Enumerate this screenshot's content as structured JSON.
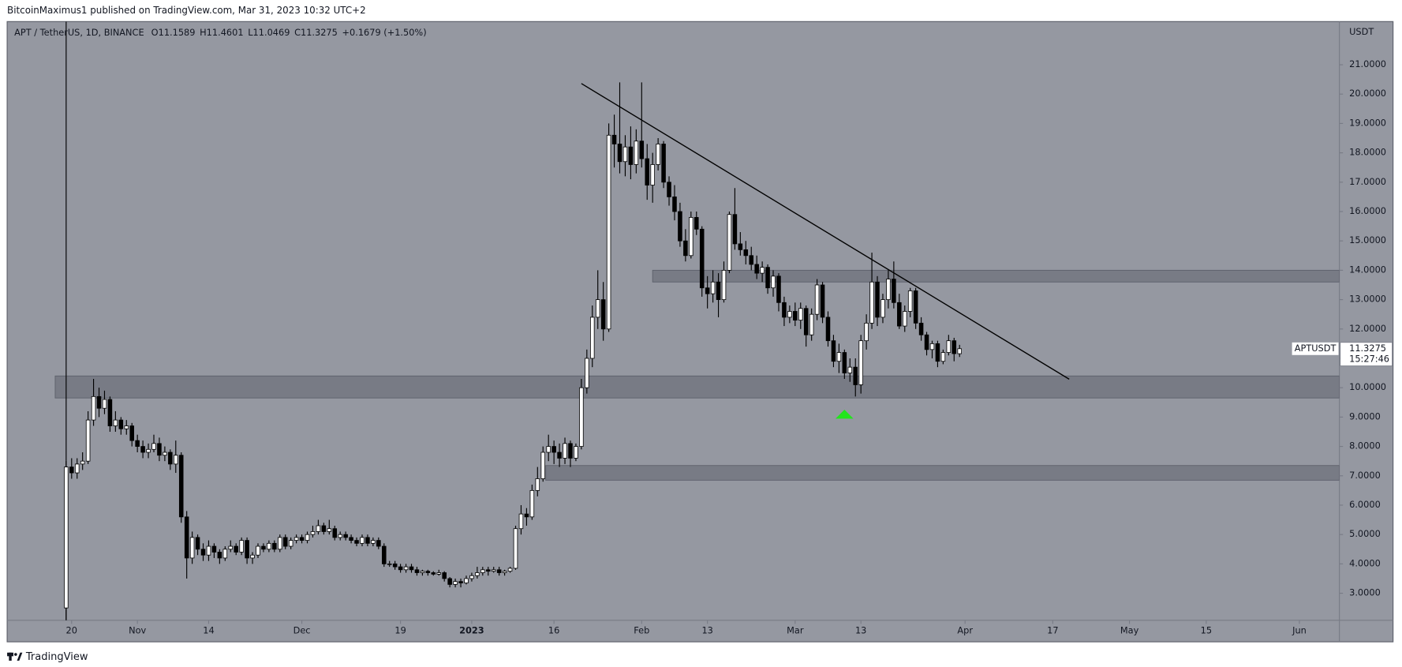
{
  "chart_data": {
    "type": "candlestick",
    "published": "BitcoinMaximus1 published on TradingView.com, Mar 31, 2023 10:32 UTC+2",
    "symbol": "APT / TetherUS, 1D, BINANCE",
    "ohlc_labels": [
      "O",
      "H",
      "L",
      "C"
    ],
    "change": "+0.1679 (+1.50%)",
    "y_axis_title": "USDT",
    "ticker_tag": "APTUSDT",
    "countdown": "15:27:46",
    "brand": "TradingView",
    "up_color": "#ffffff",
    "down_color": "#000000",
    "background": "#9598a1",
    "zone_color": "#6f727c",
    "xlim": [
      -10.6,
      232.3
    ],
    "ylim": [
      2.08,
      22.47
    ],
    "xticks": [
      {
        "value": 1,
        "label": "20"
      },
      {
        "value": 13,
        "label": "Nov"
      },
      {
        "value": 26,
        "label": "14"
      },
      {
        "value": 43,
        "label": "Dec"
      },
      {
        "value": 61,
        "label": "19"
      },
      {
        "value": 74,
        "label": "2023"
      },
      {
        "value": 89,
        "label": "16"
      },
      {
        "value": 105,
        "label": "Feb"
      },
      {
        "value": 117,
        "label": "13"
      },
      {
        "value": 133,
        "label": "Mar"
      },
      {
        "value": 145,
        "label": "13"
      },
      {
        "value": 164,
        "label": "Apr"
      },
      {
        "value": 180,
        "label": "17"
      },
      {
        "value": 194,
        "label": "May"
      },
      {
        "value": 208,
        "label": "15"
      },
      {
        "value": 225,
        "label": "Jun"
      }
    ],
    "yticks": [
      {
        "value": 3,
        "label": "3.0000"
      },
      {
        "value": 4,
        "label": "4.0000"
      },
      {
        "value": 5,
        "label": "5.0000"
      },
      {
        "value": 6,
        "label": "6.0000"
      },
      {
        "value": 7,
        "label": "7.0000"
      },
      {
        "value": 8,
        "label": "8.0000"
      },
      {
        "value": 9,
        "label": "9.0000"
      },
      {
        "value": 10,
        "label": "10.0000"
      },
      {
        "value": 11,
        "label": "11.0000"
      },
      {
        "value": 12,
        "label": "12.0000"
      },
      {
        "value": 13,
        "label": "13.0000"
      },
      {
        "value": 14,
        "label": "14.0000"
      },
      {
        "value": 15,
        "label": "15.0000"
      },
      {
        "value": 16,
        "label": "16.0000"
      },
      {
        "value": 17,
        "label": "17.0000"
      },
      {
        "value": 18,
        "label": "18.0000"
      },
      {
        "value": 19,
        "label": "19.0000"
      },
      {
        "value": 20,
        "label": "20.0000"
      },
      {
        "value": 21,
        "label": "21.0000"
      }
    ],
    "zones": [
      {
        "x0": 107,
        "y0": 13.6,
        "y1": 14.0
      },
      {
        "x0": -2,
        "y0": 9.65,
        "y1": 10.4
      },
      {
        "x0": 87.5,
        "y0": 6.85,
        "y1": 7.35
      }
    ],
    "trendline": {
      "x": [
        94,
        183
      ],
      "y": [
        20.36,
        10.29
      ]
    },
    "vertical_line": 0,
    "marker": {
      "x": 142,
      "price": 9.1,
      "color": "#22e51c"
    },
    "candles": [
      [
        2.5,
        7.5,
        1.0,
        7.3
      ],
      [
        7.3,
        7.6,
        6.9,
        7.1
      ],
      [
        7.1,
        7.6,
        6.9,
        7.4
      ],
      [
        7.4,
        7.8,
        7.2,
        7.5
      ],
      [
        7.5,
        9.2,
        7.4,
        8.9
      ],
      [
        8.9,
        10.3,
        8.7,
        9.7
      ],
      [
        9.7,
        10.0,
        9.0,
        9.3
      ],
      [
        9.3,
        9.9,
        9.1,
        9.6
      ],
      [
        9.6,
        9.7,
        8.5,
        8.7
      ],
      [
        8.7,
        9.2,
        8.5,
        8.9
      ],
      [
        8.9,
        9.0,
        8.4,
        8.6
      ],
      [
        8.6,
        8.9,
        8.4,
        8.7
      ],
      [
        8.7,
        8.8,
        8.0,
        8.2
      ],
      [
        8.2,
        8.4,
        7.8,
        8.0
      ],
      [
        8.0,
        8.2,
        7.6,
        7.8
      ],
      [
        7.8,
        8.1,
        7.6,
        7.9
      ],
      [
        7.9,
        8.4,
        7.8,
        8.1
      ],
      [
        8.1,
        8.3,
        7.5,
        7.7
      ],
      [
        7.7,
        8.0,
        7.5,
        7.8
      ],
      [
        7.8,
        7.9,
        7.2,
        7.4
      ],
      [
        7.4,
        8.2,
        7.1,
        7.7
      ],
      [
        7.7,
        7.8,
        5.4,
        5.6
      ],
      [
        5.6,
        5.8,
        3.5,
        4.2
      ],
      [
        4.2,
        5.1,
        4.0,
        4.9
      ],
      [
        4.9,
        5.0,
        4.3,
        4.5
      ],
      [
        4.5,
        4.7,
        4.1,
        4.3
      ],
      [
        4.3,
        4.8,
        4.1,
        4.6
      ],
      [
        4.6,
        4.7,
        4.2,
        4.4
      ],
      [
        4.4,
        4.5,
        4.0,
        4.2
      ],
      [
        4.2,
        4.6,
        4.1,
        4.5
      ],
      [
        4.5,
        4.8,
        4.4,
        4.6
      ],
      [
        4.6,
        4.7,
        4.3,
        4.4
      ],
      [
        4.4,
        4.9,
        4.3,
        4.8
      ],
      [
        4.8,
        4.9,
        4.0,
        4.2
      ],
      [
        4.2,
        4.4,
        4.0,
        4.3
      ],
      [
        4.3,
        4.7,
        4.2,
        4.6
      ],
      [
        4.6,
        4.7,
        4.4,
        4.5
      ],
      [
        4.5,
        4.8,
        4.4,
        4.7
      ],
      [
        4.7,
        4.8,
        4.4,
        4.5
      ],
      [
        4.5,
        5.0,
        4.4,
        4.9
      ],
      [
        4.9,
        5.0,
        4.5,
        4.6
      ],
      [
        4.6,
        4.9,
        4.5,
        4.8
      ],
      [
        4.8,
        5.0,
        4.7,
        4.9
      ],
      [
        4.9,
        5.0,
        4.7,
        4.8
      ],
      [
        4.8,
        5.1,
        4.7,
        5.0
      ],
      [
        5.0,
        5.3,
        4.9,
        5.1
      ],
      [
        5.1,
        5.5,
        5.0,
        5.3
      ],
      [
        5.3,
        5.4,
        5.0,
        5.1
      ],
      [
        5.1,
        5.5,
        5.0,
        5.2
      ],
      [
        5.2,
        5.3,
        4.8,
        4.9
      ],
      [
        4.9,
        5.1,
        4.8,
        5.0
      ],
      [
        5.0,
        5.1,
        4.8,
        4.9
      ],
      [
        4.9,
        5.0,
        4.7,
        4.8
      ],
      [
        4.8,
        4.9,
        4.6,
        4.7
      ],
      [
        4.7,
        5.0,
        4.6,
        4.9
      ],
      [
        4.9,
        5.0,
        4.6,
        4.7
      ],
      [
        4.7,
        4.9,
        4.6,
        4.8
      ],
      [
        4.8,
        4.9,
        4.5,
        4.6
      ],
      [
        4.6,
        4.7,
        3.9,
        4.0
      ],
      [
        4.0,
        4.1,
        3.9,
        4.0
      ],
      [
        4.0,
        4.1,
        3.8,
        3.9
      ],
      [
        3.9,
        4.0,
        3.7,
        3.8
      ],
      [
        3.8,
        4.0,
        3.7,
        3.9
      ],
      [
        3.9,
        4.0,
        3.7,
        3.8
      ],
      [
        3.8,
        3.9,
        3.6,
        3.7
      ],
      [
        3.7,
        3.8,
        3.6,
        3.75
      ],
      [
        3.75,
        3.8,
        3.6,
        3.7
      ],
      [
        3.7,
        3.75,
        3.6,
        3.65
      ],
      [
        3.65,
        3.8,
        3.6,
        3.7
      ],
      [
        3.7,
        3.75,
        3.4,
        3.5
      ],
      [
        3.5,
        3.55,
        3.2,
        3.3
      ],
      [
        3.3,
        3.5,
        3.2,
        3.4
      ],
      [
        3.4,
        3.5,
        3.2,
        3.35
      ],
      [
        3.35,
        3.6,
        3.3,
        3.5
      ],
      [
        3.5,
        3.7,
        3.4,
        3.6
      ],
      [
        3.6,
        3.9,
        3.5,
        3.7
      ],
      [
        3.7,
        3.9,
        3.6,
        3.8
      ],
      [
        3.8,
        3.9,
        3.6,
        3.75
      ],
      [
        3.75,
        3.9,
        3.7,
        3.8
      ],
      [
        3.8,
        3.9,
        3.6,
        3.7
      ],
      [
        3.7,
        3.8,
        3.6,
        3.75
      ],
      [
        3.75,
        3.9,
        3.7,
        3.85
      ],
      [
        3.85,
        5.3,
        3.8,
        5.2
      ],
      [
        5.2,
        6.0,
        5.0,
        5.7
      ],
      [
        5.7,
        5.9,
        5.3,
        5.6
      ],
      [
        5.6,
        6.7,
        5.5,
        6.5
      ],
      [
        6.5,
        7.3,
        6.3,
        6.9
      ],
      [
        6.9,
        8.0,
        6.8,
        7.8
      ],
      [
        7.8,
        8.4,
        7.5,
        8.0
      ],
      [
        8.0,
        8.2,
        7.4,
        7.8
      ],
      [
        7.8,
        8.1,
        7.3,
        7.6
      ],
      [
        7.6,
        8.3,
        7.4,
        8.1
      ],
      [
        8.1,
        8.2,
        7.3,
        7.6
      ],
      [
        7.6,
        8.1,
        7.5,
        8.0
      ],
      [
        8.0,
        10.3,
        7.9,
        10.0
      ],
      [
        10.0,
        11.3,
        9.8,
        11.0
      ],
      [
        11.0,
        12.8,
        10.7,
        12.4
      ],
      [
        12.4,
        14.0,
        12.0,
        13.0
      ],
      [
        13.0,
        13.6,
        11.6,
        12.0
      ],
      [
        12.0,
        19.0,
        11.9,
        18.6
      ],
      [
        18.6,
        19.3,
        17.5,
        18.3
      ],
      [
        18.3,
        20.4,
        17.3,
        17.7
      ],
      [
        17.7,
        18.6,
        17.2,
        18.2
      ],
      [
        18.2,
        18.9,
        17.1,
        17.6
      ],
      [
        17.6,
        18.8,
        17.3,
        18.4
      ],
      [
        18.4,
        20.4,
        17.5,
        17.8
      ],
      [
        17.8,
        18.3,
        16.4,
        16.9
      ],
      [
        16.9,
        18.0,
        16.3,
        17.6
      ],
      [
        17.6,
        18.5,
        17.4,
        18.3
      ],
      [
        18.3,
        18.4,
        16.8,
        17.0
      ],
      [
        17.0,
        17.2,
        16.2,
        16.5
      ],
      [
        16.5,
        16.9,
        15.7,
        16.0
      ],
      [
        16.0,
        16.3,
        14.8,
        15.0
      ],
      [
        15.0,
        15.4,
        14.3,
        14.5
      ],
      [
        14.5,
        16.0,
        14.4,
        15.8
      ],
      [
        15.8,
        16.0,
        15.2,
        15.4
      ],
      [
        15.4,
        15.5,
        13.1,
        13.4
      ],
      [
        13.4,
        13.8,
        12.7,
        13.2
      ],
      [
        13.2,
        14.0,
        12.9,
        13.6
      ],
      [
        13.6,
        13.9,
        12.4,
        13.0
      ],
      [
        13.0,
        14.3,
        12.9,
        14.0
      ],
      [
        14.0,
        16.0,
        13.9,
        15.9
      ],
      [
        15.9,
        16.8,
        14.7,
        14.9
      ],
      [
        14.9,
        15.3,
        14.5,
        14.7
      ],
      [
        14.7,
        15.0,
        14.2,
        14.5
      ],
      [
        14.5,
        14.8,
        14.0,
        14.2
      ],
      [
        14.2,
        14.5,
        13.7,
        13.9
      ],
      [
        13.9,
        14.3,
        13.6,
        14.1
      ],
      [
        14.1,
        14.2,
        13.2,
        13.4
      ],
      [
        13.4,
        14.0,
        13.1,
        13.8
      ],
      [
        13.8,
        13.9,
        12.6,
        12.9
      ],
      [
        12.9,
        13.1,
        12.1,
        12.4
      ],
      [
        12.4,
        12.8,
        12.2,
        12.6
      ],
      [
        12.6,
        12.9,
        12.1,
        12.3
      ],
      [
        12.3,
        12.9,
        12.0,
        12.7
      ],
      [
        12.7,
        12.8,
        11.4,
        11.8
      ],
      [
        11.8,
        12.7,
        11.6,
        12.5
      ],
      [
        12.5,
        13.7,
        12.3,
        13.5
      ],
      [
        13.5,
        13.6,
        12.2,
        12.4
      ],
      [
        12.4,
        12.6,
        11.4,
        11.6
      ],
      [
        11.6,
        11.8,
        10.7,
        10.9
      ],
      [
        10.9,
        11.5,
        10.5,
        11.2
      ],
      [
        11.2,
        11.3,
        10.3,
        10.5
      ],
      [
        10.5,
        11.0,
        10.2,
        10.7
      ],
      [
        10.7,
        11.0,
        9.7,
        10.1
      ],
      [
        10.1,
        11.8,
        9.8,
        11.6
      ],
      [
        11.6,
        12.5,
        11.3,
        12.2
      ],
      [
        12.2,
        14.6,
        12.0,
        13.6
      ],
      [
        13.6,
        13.8,
        12.1,
        12.4
      ],
      [
        12.4,
        13.2,
        12.2,
        13.0
      ],
      [
        13.0,
        14.0,
        12.7,
        13.7
      ],
      [
        13.7,
        14.3,
        12.7,
        12.9
      ],
      [
        12.9,
        13.2,
        12.0,
        12.1
      ],
      [
        12.1,
        12.8,
        11.9,
        12.6
      ],
      [
        12.6,
        13.4,
        12.4,
        13.3
      ],
      [
        13.3,
        13.4,
        12.0,
        12.2
      ],
      [
        12.2,
        12.4,
        11.6,
        11.8
      ],
      [
        11.8,
        11.9,
        11.1,
        11.3
      ],
      [
        11.3,
        11.6,
        11.0,
        11.5
      ],
      [
        11.5,
        11.6,
        10.7,
        10.9
      ],
      [
        10.9,
        11.3,
        10.8,
        11.2
      ],
      [
        11.2,
        11.8,
        11.1,
        11.6
      ],
      [
        11.6,
        11.7,
        10.9,
        11.16
      ],
      [
        11.1589,
        11.4601,
        11.0469,
        11.3275
      ]
    ]
  }
}
